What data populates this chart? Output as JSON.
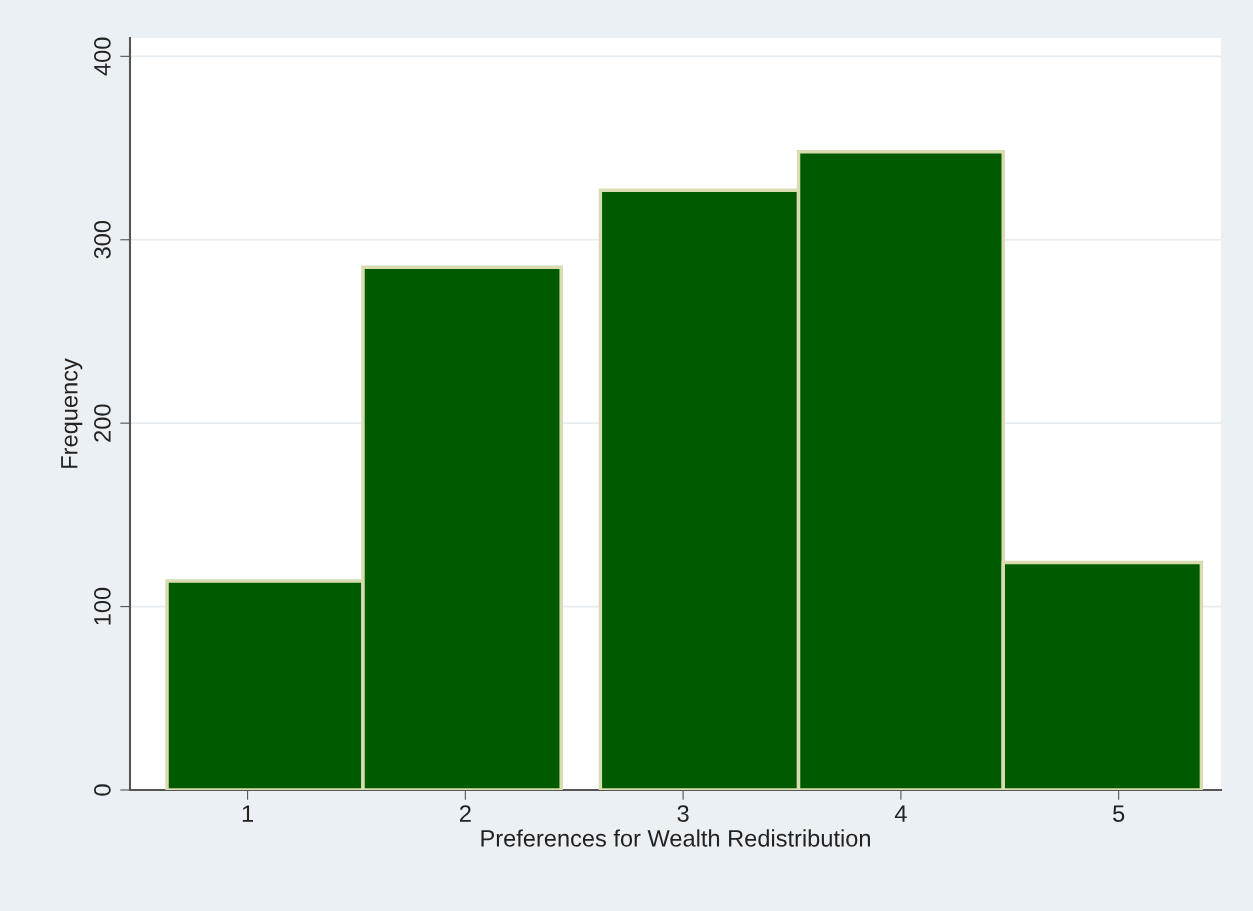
{
  "chart_data": {
    "type": "histogram",
    "xlabel": "Preferences for Wealth Redistribution",
    "ylabel": "Frequency",
    "bins": [
      0.63,
      1.53,
      2.44,
      2.62,
      3.53,
      4.47,
      5.38
    ],
    "values": [
      114,
      285,
      0,
      327,
      348,
      124
    ],
    "color": "#005a00",
    "xlim": [
      0.46,
      5.47
    ],
    "ylim": [
      0,
      410
    ],
    "xticks": [
      1,
      2,
      3,
      4,
      5
    ],
    "yticks": [
      0,
      100,
      200,
      300,
      400
    ],
    "grid": "y"
  }
}
